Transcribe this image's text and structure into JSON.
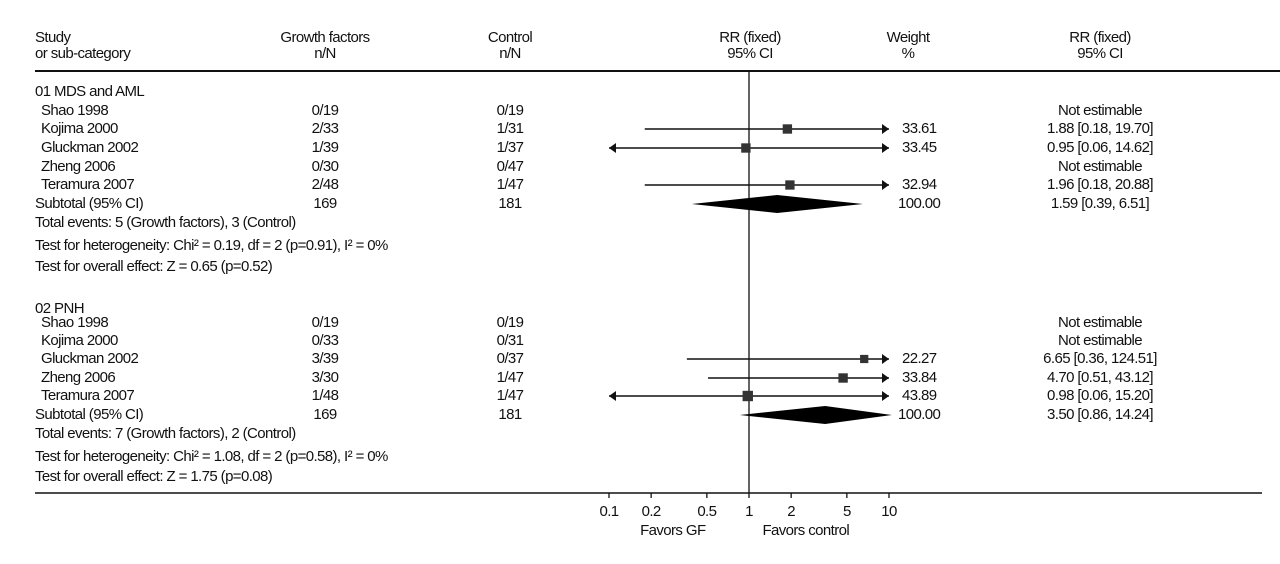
{
  "chart_data": {
    "type": "forest",
    "headers": {
      "study": [
        "Study",
        "or sub-category"
      ],
      "gf": [
        "Growth factors",
        "n/N"
      ],
      "control": [
        "Control",
        "n/N"
      ],
      "rr_plot": [
        "RR (fixed)",
        "95% CI"
      ],
      "weight": [
        "Weight",
        "%"
      ],
      "rr_text": [
        "RR (fixed)",
        "95% CI"
      ]
    },
    "axis": {
      "scale": "log",
      "xlim": [
        0.1,
        10
      ],
      "ticks": [
        0.1,
        0.2,
        0.5,
        1,
        2,
        5,
        10
      ],
      "tick_labels": [
        "0.1",
        "0.2",
        "0.5",
        "1",
        "2",
        "5",
        "10"
      ],
      "xlabel_left": "Favors GF",
      "xlabel_right": "Favors control",
      "reference": 1
    },
    "groups": [
      {
        "title": "01 MDS and AML",
        "studies": [
          {
            "name": "Shao 1998",
            "gf": "0/19",
            "control": "0/19",
            "rr": null,
            "lo": null,
            "hi": null,
            "weight": "",
            "ci_text": "Not estimable"
          },
          {
            "name": "Kojima 2000",
            "gf": "2/33",
            "control": "1/31",
            "rr": 1.88,
            "lo": 0.18,
            "hi": 19.7,
            "weight": "33.61",
            "ci_text": "1.88 [0.18, 19.70]"
          },
          {
            "name": "Gluckman 2002",
            "gf": "1/39",
            "control": "1/37",
            "rr": 0.95,
            "lo": 0.06,
            "hi": 14.62,
            "weight": "33.45",
            "ci_text": "0.95 [0.06, 14.62]"
          },
          {
            "name": "Zheng 2006",
            "gf": "0/30",
            "control": "0/47",
            "rr": null,
            "lo": null,
            "hi": null,
            "weight": "",
            "ci_text": "Not estimable"
          },
          {
            "name": "Teramura 2007",
            "gf": "2/48",
            "control": "1/47",
            "rr": 1.96,
            "lo": 0.18,
            "hi": 20.88,
            "weight": "32.94",
            "ci_text": "1.96 [0.18, 20.88]"
          }
        ],
        "subtotal": {
          "name": "Subtotal (95% CI)",
          "gf": "169",
          "control": "181",
          "rr": 1.59,
          "lo": 0.39,
          "hi": 6.51,
          "weight": "100.00",
          "ci_text": "1.59 [0.39, 6.51]"
        },
        "total_events": "Total events: 5 (Growth factors), 3 (Control)",
        "heterogeneity": "Test for heterogeneity: Chi² = 0.19, df = 2 (p=0.91), I² = 0%",
        "overall_effect": "Test for overall effect: Z = 0.65 (p=0.52)"
      },
      {
        "title": "02 PNH",
        "studies": [
          {
            "name": "Shao 1998",
            "gf": "0/19",
            "control": "0/19",
            "rr": null,
            "lo": null,
            "hi": null,
            "weight": "",
            "ci_text": "Not estimable"
          },
          {
            "name": "Kojima 2000",
            "gf": "0/33",
            "control": "0/31",
            "rr": null,
            "lo": null,
            "hi": null,
            "weight": "",
            "ci_text": "Not estimable"
          },
          {
            "name": "Gluckman 2002",
            "gf": "3/39",
            "control": "0/37",
            "rr": 6.65,
            "lo": 0.36,
            "hi": 124.51,
            "weight": "22.27",
            "ci_text": "6.65 [0.36, 124.51]"
          },
          {
            "name": "Zheng 2006",
            "gf": "3/30",
            "control": "1/47",
            "rr": 4.7,
            "lo": 0.51,
            "hi": 43.12,
            "weight": "33.84",
            "ci_text": "4.70 [0.51, 43.12]"
          },
          {
            "name": "Teramura 2007",
            "gf": "1/48",
            "control": "1/47",
            "rr": 0.98,
            "lo": 0.06,
            "hi": 15.2,
            "weight": "43.89",
            "ci_text": "0.98 [0.06, 15.20]"
          }
        ],
        "subtotal": {
          "name": "Subtotal (95% CI)",
          "gf": "169",
          "control": "181",
          "rr": 3.5,
          "lo": 0.86,
          "hi": 14.24,
          "weight": "100.00",
          "ci_text": "3.50 [0.86, 14.24]"
        },
        "total_events": "Total events: 7 (Growth factors), 2 (Control)",
        "heterogeneity": "Test for heterogeneity: Chi² = 1.08, df = 2 (p=0.58), I² = 0%",
        "overall_effect": "Test for overall effect: Z = 1.75 (p=0.08)"
      }
    ]
  }
}
